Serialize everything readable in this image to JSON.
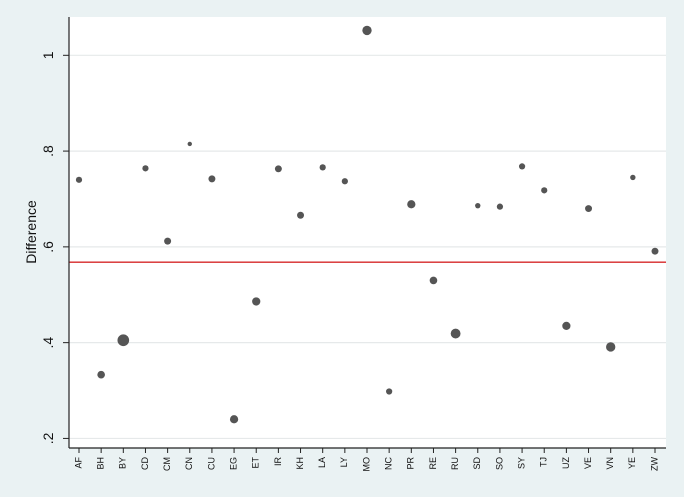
{
  "chart_data": {
    "type": "scatter",
    "title": "",
    "xlabel": "",
    "ylabel": "Difference",
    "ylim": [
      0.18,
      1.08
    ],
    "yticks": [
      {
        "value": 0.2,
        "label": ".2"
      },
      {
        "value": 0.4,
        "label": ".4"
      },
      {
        "value": 0.6,
        "label": ".6"
      },
      {
        "value": 0.8,
        "label": ".8"
      },
      {
        "value": 1.0,
        "label": "1"
      }
    ],
    "reference_line": {
      "value": 0.568,
      "color": "#d62728"
    },
    "grid": true,
    "marker_color": "#555555",
    "background_color": "#eaf2f3",
    "plot_background_color": "#ffffff",
    "categories": [
      "AF",
      "BH",
      "BY",
      "CD",
      "CM",
      "CN",
      "CU",
      "EG",
      "ET",
      "IR",
      "KH",
      "LA",
      "LY",
      "MO",
      "NC",
      "PR",
      "RE",
      "RU",
      "SD",
      "SO",
      "SY",
      "TJ",
      "UZ",
      "VE",
      "VN",
      "YE",
      "ZW"
    ],
    "points": [
      {
        "x": "AF",
        "y": 0.74,
        "weight": 2
      },
      {
        "x": "BH",
        "y": 0.333,
        "weight": 3
      },
      {
        "x": "BY",
        "y": 0.405,
        "weight": 7
      },
      {
        "x": "CD",
        "y": 0.764,
        "weight": 2
      },
      {
        "x": "CM",
        "y": 0.612,
        "weight": 2.5
      },
      {
        "x": "CN",
        "y": 0.815,
        "weight": 1
      },
      {
        "x": "CU",
        "y": 0.742,
        "weight": 2.5
      },
      {
        "x": "EG",
        "y": 0.24,
        "weight": 3.5
      },
      {
        "x": "ET",
        "y": 0.486,
        "weight": 3.5
      },
      {
        "x": "IR",
        "y": 0.763,
        "weight": 2.5
      },
      {
        "x": "KH",
        "y": 0.666,
        "weight": 2.5
      },
      {
        "x": "LA",
        "y": 0.766,
        "weight": 2
      },
      {
        "x": "LY",
        "y": 0.737,
        "weight": 2
      },
      {
        "x": "MO",
        "y": 1.052,
        "weight": 4.5
      },
      {
        "x": "NC",
        "y": 0.298,
        "weight": 2
      },
      {
        "x": "PR",
        "y": 0.689,
        "weight": 3.5
      },
      {
        "x": "RE",
        "y": 0.53,
        "weight": 3
      },
      {
        "x": "RU",
        "y": 0.419,
        "weight": 5
      },
      {
        "x": "SD",
        "y": 0.686,
        "weight": 1.5
      },
      {
        "x": "SO",
        "y": 0.684,
        "weight": 2
      },
      {
        "x": "SY",
        "y": 0.768,
        "weight": 2
      },
      {
        "x": "TJ",
        "y": 0.718,
        "weight": 2
      },
      {
        "x": "UZ",
        "y": 0.435,
        "weight": 3.5
      },
      {
        "x": "VE",
        "y": 0.68,
        "weight": 2.5
      },
      {
        "x": "VN",
        "y": 0.391,
        "weight": 4.5
      },
      {
        "x": "YE",
        "y": 0.745,
        "weight": 1.5
      },
      {
        "x": "ZW",
        "y": 0.591,
        "weight": 2.5
      }
    ]
  }
}
